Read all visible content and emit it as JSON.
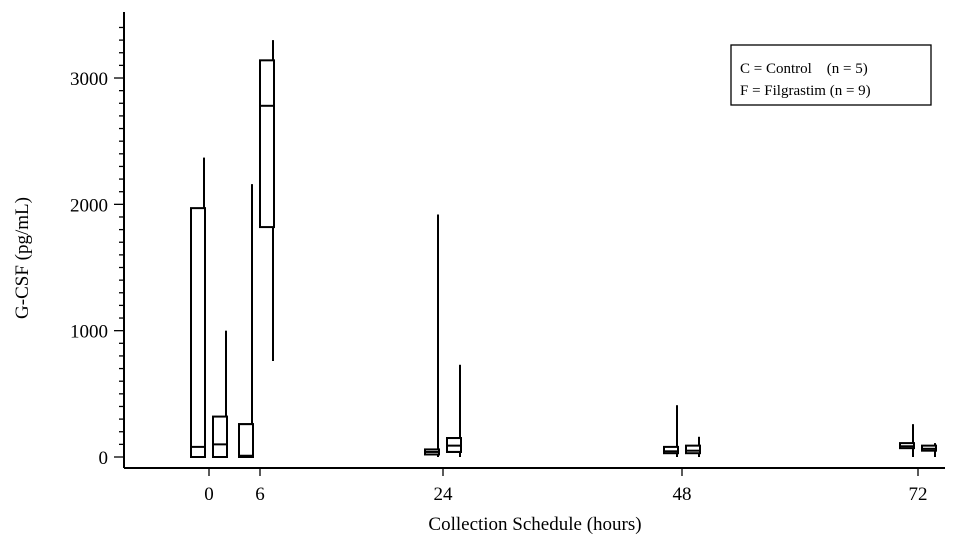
{
  "chart_data": {
    "type": "boxplot",
    "title": "",
    "xlabel": "Collection Schedule (hours)",
    "ylabel": "G-CSF (pg/mL)",
    "x_ticks": [
      "0",
      "6",
      "24",
      "48",
      "72"
    ],
    "y_ticks": [
      0,
      1000,
      2000,
      3000
    ],
    "ylim": [
      -50,
      3500
    ],
    "legend": {
      "position": "top-right",
      "entries": [
        "C = Control    (n = 5)",
        "F = Filgrastim (n = 9)"
      ]
    },
    "series": [
      {
        "code": "C",
        "boxes": [
          {
            "time": "0",
            "min": 0,
            "q1": 0,
            "median": 80,
            "q3": 1970,
            "max": 2370,
            "shaded": false
          },
          {
            "time": "6",
            "min": 0,
            "q1": 0,
            "median": 10,
            "q3": 260,
            "max": 2160,
            "shaded": true
          },
          {
            "time": "24",
            "min": 0,
            "q1": 20,
            "median": 40,
            "q3": 60,
            "max": 1920,
            "shaded": false
          },
          {
            "time": "48",
            "min": 0,
            "q1": 30,
            "median": 45,
            "q3": 80,
            "max": 410,
            "shaded": false
          },
          {
            "time": "72",
            "min": 0,
            "q1": 70,
            "median": 85,
            "q3": 110,
            "max": 260,
            "shaded": false
          }
        ]
      },
      {
        "code": "F",
        "boxes": [
          {
            "time": "0",
            "min": 0,
            "q1": 0,
            "median": 100,
            "q3": 320,
            "max": 1000,
            "shaded": false
          },
          {
            "time": "6",
            "min": 760,
            "q1": 1820,
            "median": 2780,
            "q3": 3140,
            "max": 3300,
            "shaded": false
          },
          {
            "time": "24",
            "min": 0,
            "q1": 40,
            "median": 90,
            "q3": 150,
            "max": 730,
            "shaded": true
          },
          {
            "time": "48",
            "min": 0,
            "q1": 30,
            "median": 50,
            "q3": 90,
            "max": 160,
            "shaded": false
          },
          {
            "time": "72",
            "min": 0,
            "q1": 50,
            "median": 65,
            "q3": 90,
            "max": 110,
            "shaded": false
          }
        ]
      }
    ]
  }
}
